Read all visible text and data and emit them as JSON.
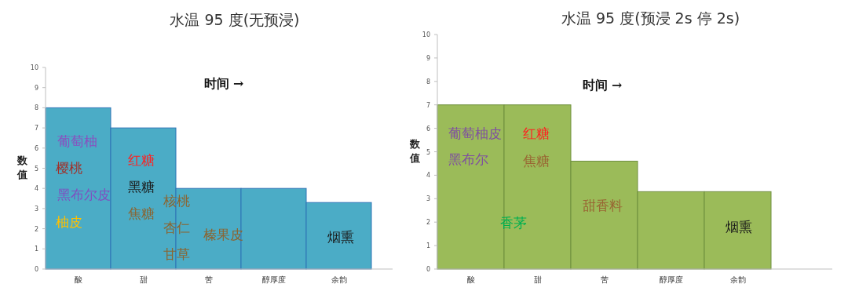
{
  "chart_data": [
    {
      "type": "bar",
      "title": "水温 95 度(无预浸)",
      "ylabel": "数值",
      "categories": [
        "酸",
        "甜",
        "苦",
        "醇厚度",
        "余韵"
      ],
      "series": [
        {
          "color": "#4bacc6",
          "values": [
            8,
            7,
            4,
            4,
            3.3
          ]
        }
      ],
      "ylim": [
        0,
        10
      ],
      "yticks": [
        0,
        1,
        2,
        3,
        4,
        5,
        6,
        7,
        8,
        9,
        10
      ],
      "grid": false,
      "annotations": [
        "时间 →",
        "葡萄柚",
        "樱桃",
        "黑布尔皮",
        "柚皮",
        "红糖",
        "黑糖",
        "焦糖",
        "核桃",
        "杏仁",
        "甘草",
        "榛果皮",
        "烟熏"
      ]
    },
    {
      "type": "bar",
      "title": "水温 95 度(预浸 2s 停 2s)",
      "ylabel": "数值",
      "categories": [
        "酸",
        "甜",
        "苦",
        "醇厚度",
        "余韵"
      ],
      "series": [
        {
          "color": "#9bbb59",
          "values": [
            7,
            7,
            4.6,
            3.3,
            3.3
          ]
        }
      ],
      "ylim": [
        0,
        10
      ],
      "yticks": [
        0,
        1,
        2,
        3,
        4,
        5,
        6,
        7,
        8,
        9,
        10
      ],
      "grid": false,
      "annotations": [
        "时间 →",
        "葡萄柚皮",
        "黑布尔",
        "红糖",
        "焦糖",
        "香茅",
        "甜香料",
        "烟熏"
      ]
    }
  ]
}
